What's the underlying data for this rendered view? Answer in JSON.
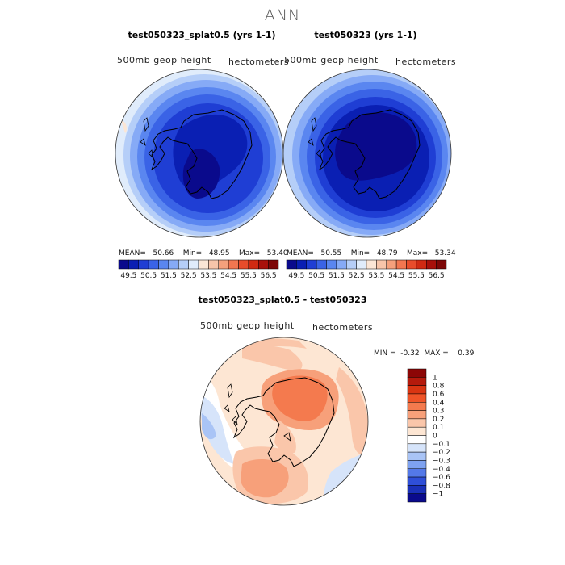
{
  "page": {
    "title": "ANN"
  },
  "panels": [
    {
      "title": "test050323_splat0.5 (yrs 1-1)",
      "variable": "500mb geop height",
      "units": "hectometers",
      "stats": {
        "mean": "50.66",
        "min": "48.95",
        "max": "53.40"
      }
    },
    {
      "title": "test050323 (yrs 1-1)",
      "variable": "500mb geop height",
      "units": "hectometers",
      "stats": {
        "mean": "50.55",
        "min": "48.79",
        "max": "53.34"
      }
    }
  ],
  "stat_labels": {
    "mean": "MEAN=",
    "min": "Min=",
    "max": "Max="
  },
  "colorbar_top": {
    "levels": [
      "49.5",
      "50.5",
      "51.5",
      "52.5",
      "53.5",
      "54.5",
      "55.5",
      "56.5"
    ],
    "colors": [
      "#0a0a8c",
      "#0a1fb3",
      "#1f3ed4",
      "#3a63e6",
      "#5a86f0",
      "#86aaf6",
      "#b5cef8",
      "#e0ecfb",
      "#fbe6d6",
      "#f7c5aa",
      "#f5a07c",
      "#f27650",
      "#e84c2b",
      "#d02a12",
      "#a8100a",
      "#7d0707"
    ]
  },
  "diff_panel": {
    "title": "test050323_splat0.5 - test050323",
    "variable": "500mb geop height",
    "units": "hectometers",
    "min_label": "MIN =",
    "min_value": "-0.32",
    "max_label": "MAX =",
    "max_value": "0.39"
  },
  "colorbar_diff": {
    "labels": [
      "1",
      "0.8",
      "0.6",
      "0.4",
      "0.3",
      "0.2",
      "0.1",
      "0",
      "−0.1",
      "−0.2",
      "−0.3",
      "−0.4",
      "−0.6",
      "−0.8",
      "−1"
    ],
    "colors": [
      "#8c0606",
      "#b51a0c",
      "#d93512",
      "#ef5428",
      "#f47a4e",
      "#f7a07a",
      "#fac6aa",
      "#fde6d3",
      "#ffffff",
      "#d6e4fa",
      "#a9c4f6",
      "#7ea2f0",
      "#5479e8",
      "#2f4fd8",
      "#1a30b8",
      "#0a0a8c"
    ]
  }
}
